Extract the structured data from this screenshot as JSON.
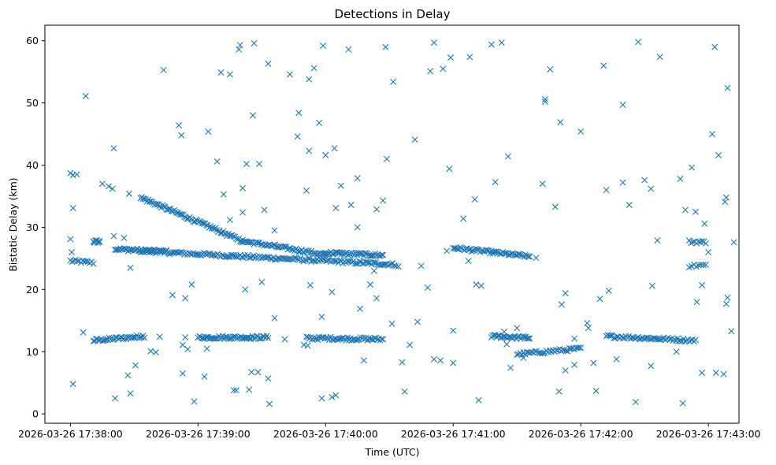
{
  "chart_data": {
    "type": "scatter",
    "title": "Detections in Delay",
    "xlabel": "Time (UTC)",
    "ylabel": "Bistatic Delay (km)",
    "marker": "x",
    "color": "#1f77b4",
    "xlim": [
      -0.2,
      5.24
    ],
    "ylim": [
      -1.5,
      62.5
    ],
    "x_unit": "minutes after 2026-03-26 17:38:00",
    "xticks": [
      {
        "value": 0,
        "label": "2026-03-26 17:38:00"
      },
      {
        "value": 1,
        "label": "2026-03-26 17:39:00"
      },
      {
        "value": 2,
        "label": "2026-03-26 17:40:00"
      },
      {
        "value": 3,
        "label": "2026-03-26 17:41:00"
      },
      {
        "value": 4,
        "label": "2026-03-26 17:42:00"
      },
      {
        "value": 5,
        "label": "2026-03-26 17:43:00"
      }
    ],
    "yticks": [
      {
        "value": 0,
        "label": "0"
      },
      {
        "value": 10,
        "label": "10"
      },
      {
        "value": 20,
        "label": "20"
      },
      {
        "value": 30,
        "label": "30"
      },
      {
        "value": 40,
        "label": "40"
      },
      {
        "value": 50,
        "label": "50"
      },
      {
        "value": 60,
        "label": "60"
      }
    ],
    "tracks": [
      {
        "name": "track-a",
        "x_start": 0.0,
        "x_end": 0.18,
        "y_start": 24.6,
        "y_end": 24.3,
        "count": 14
      },
      {
        "name": "track-b",
        "x_start": 0.18,
        "x_end": 0.23,
        "y_start": 27.7,
        "y_end": 27.7,
        "count": 10
      },
      {
        "name": "track-c",
        "x_start": 0.18,
        "x_end": 0.58,
        "y_start": 11.8,
        "y_end": 12.5,
        "count": 40
      },
      {
        "name": "track-d",
        "x_start": 0.35,
        "x_end": 0.75,
        "y_start": 26.5,
        "y_end": 26.1,
        "count": 40
      },
      {
        "name": "track-e",
        "x_start": 0.55,
        "x_end": 2.55,
        "y_start": 26.2,
        "y_end": 24.0,
        "count": 170
      },
      {
        "name": "track-f",
        "x_start": 0.55,
        "x_end": 1.35,
        "y_start": 34.8,
        "y_end": 27.8,
        "count": 80
      },
      {
        "name": "track-g",
        "x_start": 1.0,
        "x_end": 1.55,
        "y_start": 12.3,
        "y_end": 12.3,
        "count": 55
      },
      {
        "name": "track-h",
        "x_start": 1.35,
        "x_end": 2.0,
        "y_start": 27.8,
        "y_end": 25.6,
        "count": 60
      },
      {
        "name": "track-i",
        "x_start": 1.85,
        "x_end": 2.45,
        "y_start": 12.2,
        "y_end": 12.0,
        "count": 55
      },
      {
        "name": "track-j",
        "x_start": 2.0,
        "x_end": 2.45,
        "y_start": 25.9,
        "y_end": 25.5,
        "count": 45
      },
      {
        "name": "track-k",
        "x_start": 3.0,
        "x_end": 3.6,
        "y_start": 26.7,
        "y_end": 25.3,
        "count": 55
      },
      {
        "name": "track-l",
        "x_start": 3.3,
        "x_end": 3.6,
        "y_start": 12.5,
        "y_end": 12.2,
        "count": 30
      },
      {
        "name": "track-m",
        "x_start": 3.5,
        "x_end": 4.0,
        "y_start": 9.6,
        "y_end": 10.5,
        "count": 40
      },
      {
        "name": "track-n",
        "x_start": 4.2,
        "x_end": 4.9,
        "y_start": 12.5,
        "y_end": 11.8,
        "count": 60
      },
      {
        "name": "track-o",
        "x_start": 4.85,
        "x_end": 4.98,
        "y_start": 27.7,
        "y_end": 27.6,
        "count": 10
      },
      {
        "name": "track-p",
        "x_start": 4.85,
        "x_end": 4.98,
        "y_start": 23.8,
        "y_end": 23.9,
        "count": 8
      }
    ],
    "points": [
      [
        0.0,
        38.7
      ],
      [
        0.02,
        38.4
      ],
      [
        0.05,
        38.5
      ],
      [
        0.02,
        33.1
      ],
      [
        0.0,
        28.1
      ],
      [
        0.01,
        26.0
      ],
      [
        0.02,
        4.8
      ],
      [
        0.12,
        51.1
      ],
      [
        0.1,
        13.1
      ],
      [
        0.25,
        37.0
      ],
      [
        0.3,
        36.6
      ],
      [
        0.33,
        36.2
      ],
      [
        0.34,
        42.7
      ],
      [
        0.34,
        28.6
      ],
      [
        0.42,
        28.3
      ],
      [
        0.46,
        35.4
      ],
      [
        0.35,
        2.5
      ],
      [
        0.45,
        6.2
      ],
      [
        0.47,
        3.3
      ],
      [
        0.51,
        7.8
      ],
      [
        0.47,
        23.5
      ],
      [
        0.73,
        55.3
      ],
      [
        0.63,
        10.1
      ],
      [
        0.67,
        9.9
      ],
      [
        0.7,
        12.4
      ],
      [
        0.85,
        46.4
      ],
      [
        0.87,
        44.8
      ],
      [
        0.8,
        19.1
      ],
      [
        0.9,
        18.6
      ],
      [
        0.88,
        11.1
      ],
      [
        0.9,
        12.3
      ],
      [
        0.92,
        10.4
      ],
      [
        0.88,
        6.5
      ],
      [
        0.95,
        20.8
      ],
      [
        0.97,
        2.0
      ],
      [
        1.05,
        6.0
      ],
      [
        1.07,
        10.5
      ],
      [
        1.08,
        45.4
      ],
      [
        1.15,
        40.6
      ],
      [
        1.18,
        54.9
      ],
      [
        1.25,
        54.6
      ],
      [
        1.2,
        35.3
      ],
      [
        1.25,
        31.2
      ],
      [
        1.28,
        3.8
      ],
      [
        1.3,
        3.8
      ],
      [
        1.32,
        58.6
      ],
      [
        1.33,
        59.3
      ],
      [
        1.35,
        36.3
      ],
      [
        1.35,
        32.4
      ],
      [
        1.37,
        20.0
      ],
      [
        1.38,
        40.2
      ],
      [
        1.4,
        3.9
      ],
      [
        1.42,
        6.7
      ],
      [
        1.43,
        48.0
      ],
      [
        1.44,
        59.6
      ],
      [
        1.47,
        6.7
      ],
      [
        1.48,
        40.2
      ],
      [
        1.5,
        21.2
      ],
      [
        1.52,
        32.8
      ],
      [
        1.55,
        56.3
      ],
      [
        1.56,
        1.6
      ],
      [
        1.55,
        5.7
      ],
      [
        1.6,
        15.4
      ],
      [
        1.6,
        29.5
      ],
      [
        1.68,
        12.0
      ],
      [
        1.72,
        54.6
      ],
      [
        1.78,
        44.6
      ],
      [
        1.79,
        48.4
      ],
      [
        1.83,
        11.1
      ],
      [
        1.86,
        11.0
      ],
      [
        1.85,
        35.9
      ],
      [
        1.87,
        42.3
      ],
      [
        1.87,
        53.8
      ],
      [
        1.91,
        55.6
      ],
      [
        1.95,
        46.8
      ],
      [
        1.88,
        20.7
      ],
      [
        1.98,
        59.2
      ],
      [
        1.97,
        15.6
      ],
      [
        2.0,
        41.6
      ],
      [
        1.97,
        2.5
      ],
      [
        2.05,
        2.7
      ],
      [
        2.08,
        3.0
      ],
      [
        2.07,
        42.7
      ],
      [
        2.08,
        33.1
      ],
      [
        2.05,
        19.6
      ],
      [
        2.12,
        36.7
      ],
      [
        2.18,
        58.6
      ],
      [
        2.2,
        33.6
      ],
      [
        2.25,
        30.0
      ],
      [
        2.25,
        37.9
      ],
      [
        2.27,
        16.9
      ],
      [
        2.3,
        8.6
      ],
      [
        2.35,
        20.8
      ],
      [
        2.38,
        23.0
      ],
      [
        2.4,
        18.6
      ],
      [
        2.4,
        32.9
      ],
      [
        2.45,
        34.3
      ],
      [
        2.48,
        41.0
      ],
      [
        2.47,
        59.0
      ],
      [
        2.53,
        53.4
      ],
      [
        2.52,
        14.5
      ],
      [
        2.57,
        23.7
      ],
      [
        2.6,
        8.3
      ],
      [
        2.62,
        3.6
      ],
      [
        2.66,
        11.1
      ],
      [
        2.7,
        44.1
      ],
      [
        2.72,
        14.8
      ],
      [
        2.75,
        23.8
      ],
      [
        2.8,
        20.3
      ],
      [
        2.82,
        55.1
      ],
      [
        2.85,
        8.8
      ],
      [
        2.85,
        59.7
      ],
      [
        2.9,
        8.6
      ],
      [
        2.92,
        55.5
      ],
      [
        2.95,
        26.2
      ],
      [
        2.97,
        39.4
      ],
      [
        2.98,
        57.3
      ],
      [
        3.0,
        8.2
      ],
      [
        3.0,
        13.4
      ],
      [
        3.08,
        31.4
      ],
      [
        3.12,
        24.6
      ],
      [
        3.13,
        57.4
      ],
      [
        3.17,
        34.5
      ],
      [
        3.18,
        20.8
      ],
      [
        3.2,
        2.2
      ],
      [
        3.22,
        20.6
      ],
      [
        3.3,
        59.4
      ],
      [
        3.32,
        26.1
      ],
      [
        3.33,
        37.3
      ],
      [
        3.35,
        12.6
      ],
      [
        3.38,
        59.7
      ],
      [
        3.4,
        13.2
      ],
      [
        3.42,
        11.2
      ],
      [
        3.43,
        41.4
      ],
      [
        3.45,
        7.4
      ],
      [
        3.5,
        13.8
      ],
      [
        3.55,
        9.0
      ],
      [
        3.65,
        25.1
      ],
      [
        3.7,
        37.0
      ],
      [
        3.72,
        50.6
      ],
      [
        3.72,
        50.2
      ],
      [
        3.76,
        55.4
      ],
      [
        3.8,
        33.3
      ],
      [
        3.84,
        46.9
      ],
      [
        3.85,
        17.6
      ],
      [
        3.88,
        19.4
      ],
      [
        3.83,
        3.6
      ],
      [
        3.88,
        7.0
      ],
      [
        3.95,
        12.1
      ],
      [
        3.95,
        7.9
      ],
      [
        4.0,
        45.4
      ],
      [
        4.05,
        14.6
      ],
      [
        4.06,
        13.8
      ],
      [
        4.1,
        8.2
      ],
      [
        4.12,
        3.7
      ],
      [
        4.15,
        18.5
      ],
      [
        4.18,
        56.0
      ],
      [
        4.2,
        36.0
      ],
      [
        4.22,
        19.8
      ],
      [
        4.28,
        8.8
      ],
      [
        4.33,
        37.2
      ],
      [
        4.33,
        49.7
      ],
      [
        4.38,
        33.6
      ],
      [
        4.43,
        1.9
      ],
      [
        4.45,
        59.8
      ],
      [
        4.5,
        37.6
      ],
      [
        4.55,
        36.2
      ],
      [
        4.56,
        20.6
      ],
      [
        4.55,
        7.7
      ],
      [
        4.6,
        27.9
      ],
      [
        4.62,
        57.4
      ],
      [
        4.75,
        10.0
      ],
      [
        4.78,
        37.8
      ],
      [
        4.8,
        1.7
      ],
      [
        4.82,
        32.8
      ],
      [
        4.87,
        39.6
      ],
      [
        4.9,
        32.5
      ],
      [
        4.91,
        18.0
      ],
      [
        4.95,
        6.6
      ],
      [
        4.97,
        30.6
      ],
      [
        4.95,
        20.7
      ],
      [
        5.0,
        26.0
      ],
      [
        5.03,
        45.0
      ],
      [
        5.05,
        59.0
      ],
      [
        5.06,
        6.6
      ],
      [
        5.08,
        41.6
      ],
      [
        5.12,
        6.4
      ],
      [
        5.13,
        34.1
      ],
      [
        5.14,
        34.8
      ],
      [
        5.15,
        52.4
      ],
      [
        5.14,
        17.7
      ],
      [
        5.15,
        18.7
      ],
      [
        5.18,
        13.3
      ],
      [
        5.2,
        27.6
      ]
    ]
  }
}
